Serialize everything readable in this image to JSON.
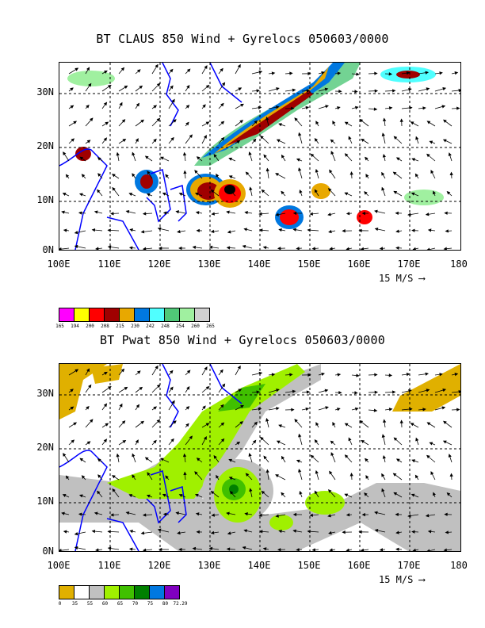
{
  "top_panel": {
    "title": "BT CLAUS 850 Wind + Gyrelocs 050603/0000",
    "y_labels": [
      "30N",
      "20N",
      "10N",
      "0N"
    ],
    "x_labels": [
      "100E",
      "110E",
      "120E",
      "130E",
      "140E",
      "150E",
      "160E",
      "170E",
      "180"
    ],
    "scale_label": "15 M/S",
    "legend_colors": [
      "#ff00ff",
      "#ffff00",
      "#ff0000",
      "#a00000",
      "#e8a800",
      "#0078e0",
      "#50ffff",
      "#50c878",
      "#a0f0a0",
      "#d0d0d0"
    ],
    "legend_labels": [
      "165",
      "194",
      "200",
      "208",
      "215",
      "230",
      "242",
      "248",
      "254",
      "260",
      "265"
    ]
  },
  "bottom_panel": {
    "title": "BT Pwat 850 Wind + Gyrelocs 050603/0000",
    "y_labels": [
      "30N",
      "20N",
      "10N",
      "0N"
    ],
    "x_labels": [
      "100E",
      "110E",
      "120E",
      "130E",
      "140E",
      "150E",
      "160E",
      "170E",
      "180"
    ],
    "scale_label": "15 M/S",
    "legend_colors": [
      "#e0b000",
      "#ffffff",
      "#c0c0c0",
      "#a0f000",
      "#40c000",
      "#008000",
      "#0078e0",
      "#8000c0"
    ],
    "legend_labels": [
      "0",
      "35",
      "55",
      "60",
      "65",
      "70",
      "75",
      "80",
      "72.29"
    ]
  }
}
